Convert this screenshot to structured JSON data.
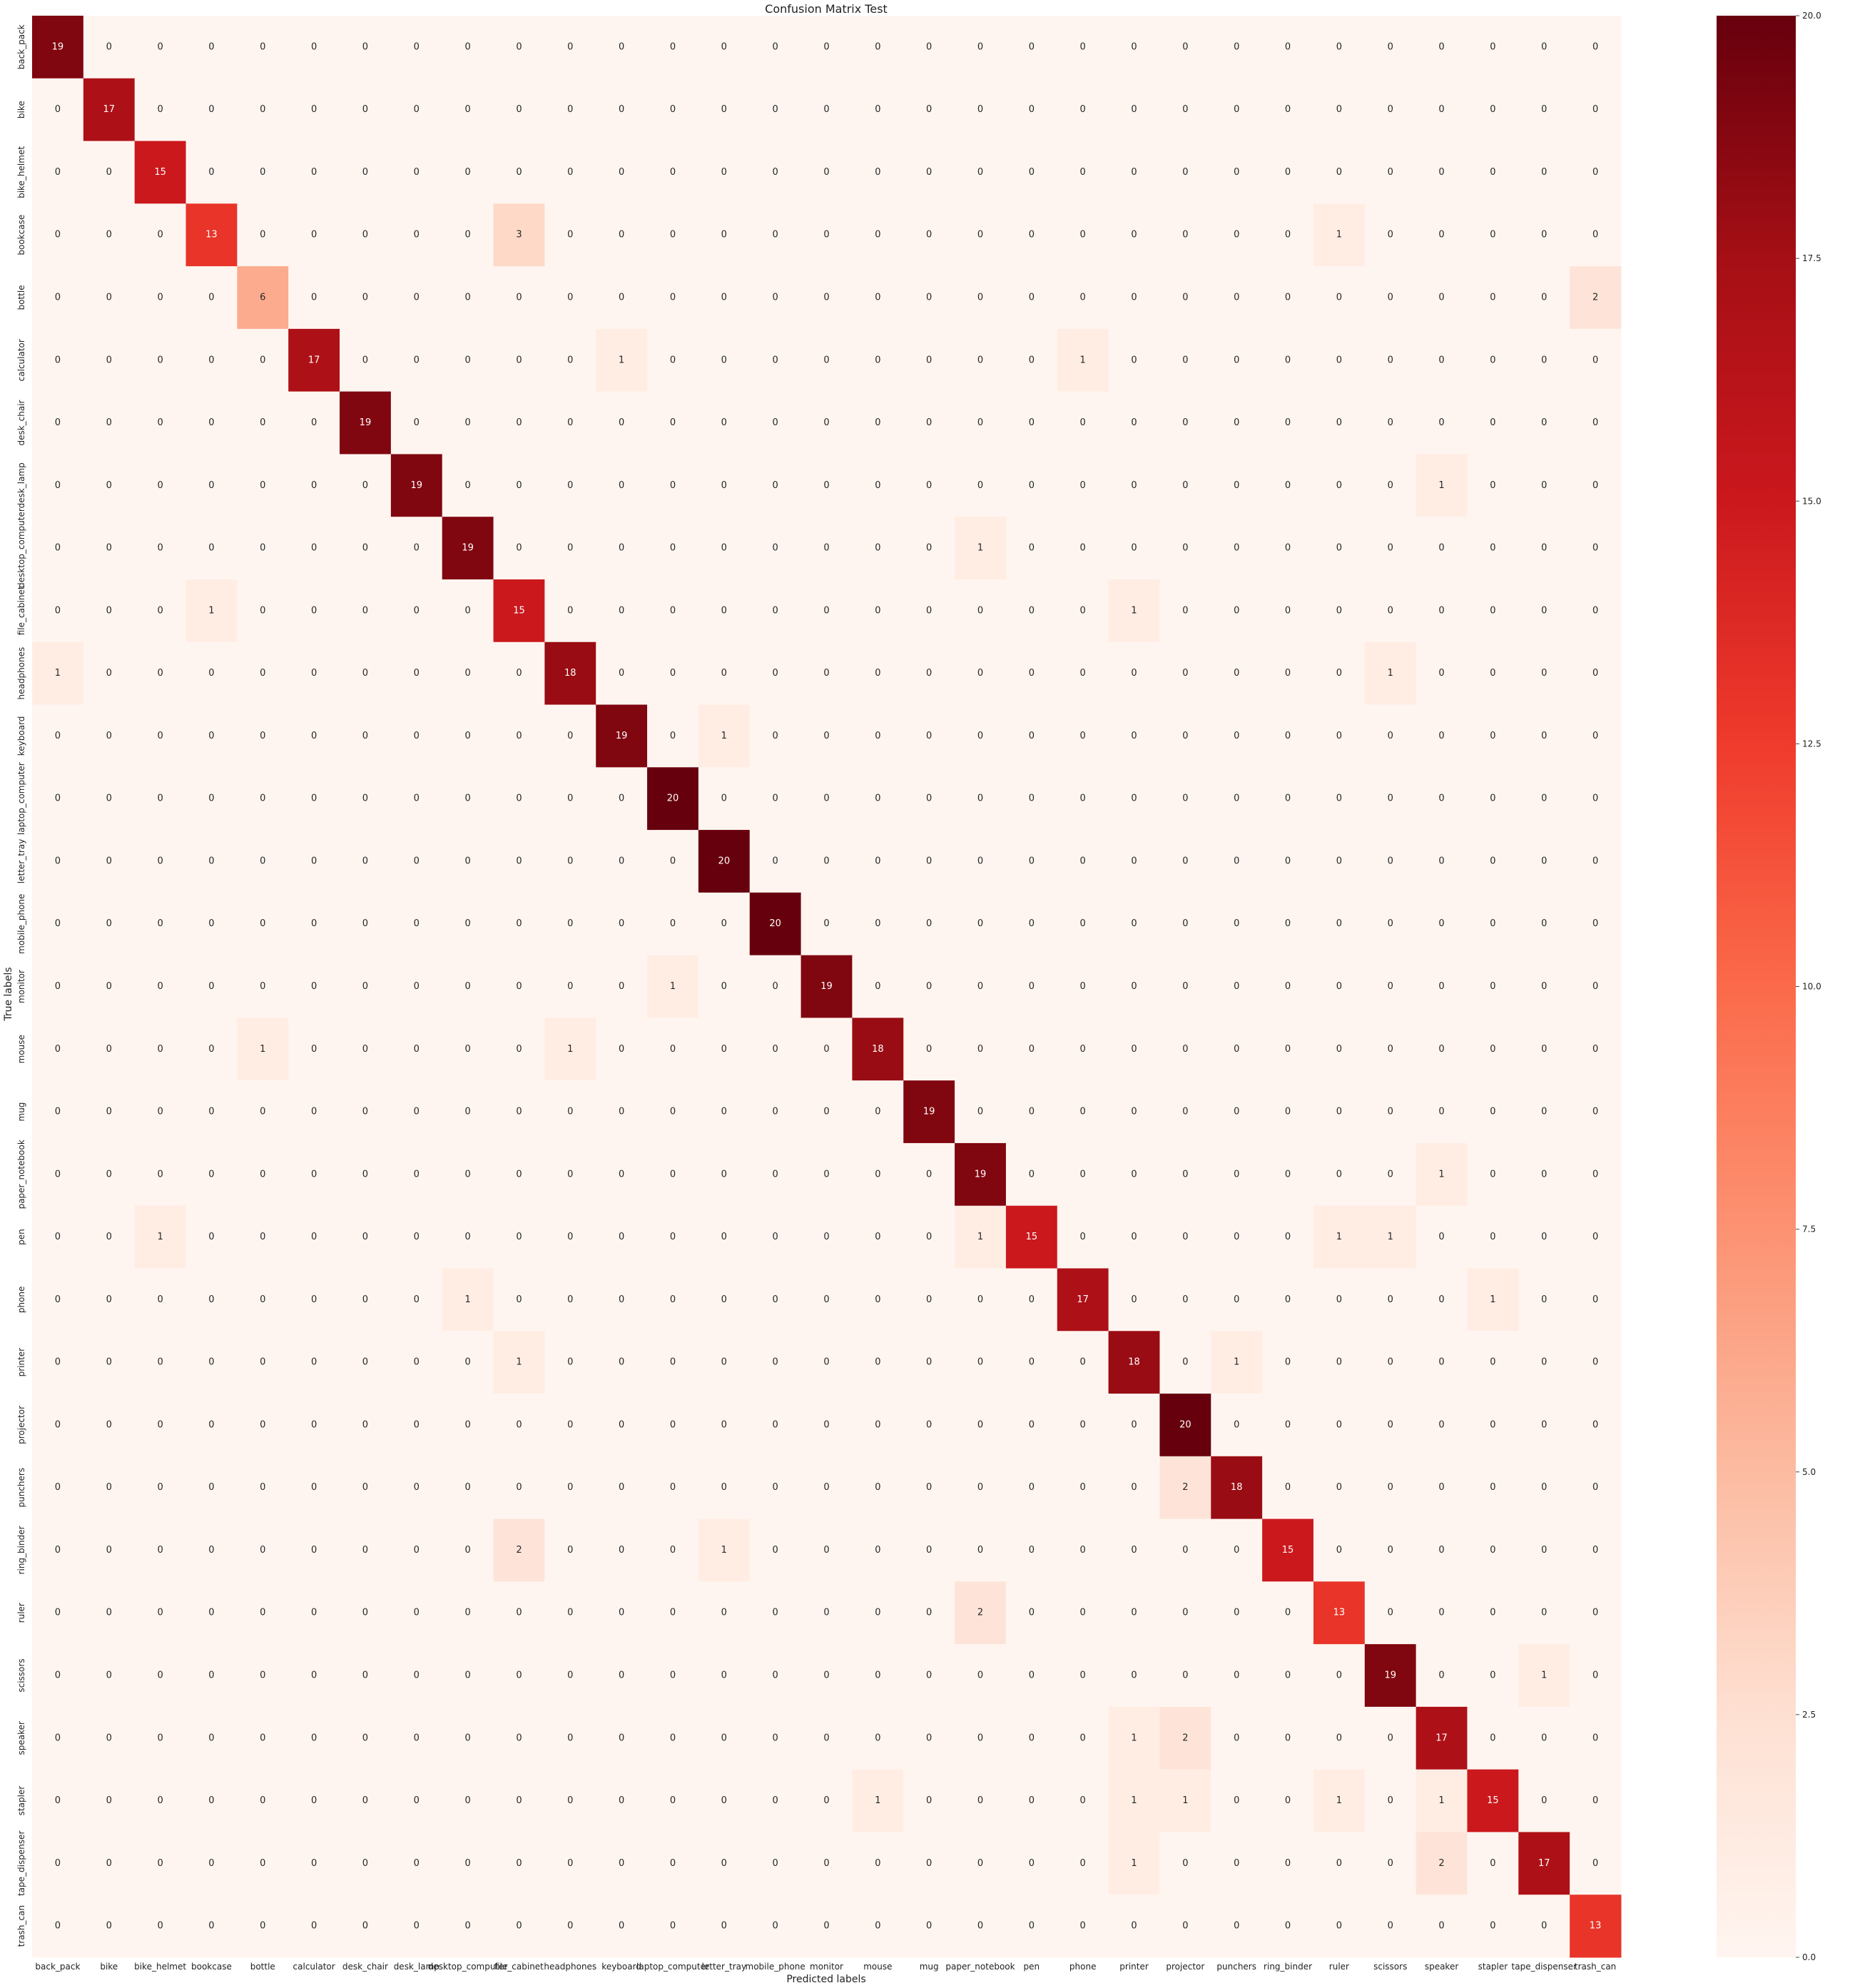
{
  "chart_data": {
    "type": "heatmap",
    "title": "Confusion Matrix Test",
    "xlabel": "Predicted labels",
    "ylabel": "True labels",
    "x_categories": [
      "back_pack",
      "bike",
      "bike_helmet",
      "bookcase",
      "bottle",
      "calculator",
      "desk_chair",
      "desk_lamp",
      "desktop_computer",
      "file_cabinet",
      "headphones",
      "keyboard",
      "laptop_computer",
      "letter_tray",
      "mobile_phone",
      "monitor",
      "mouse",
      "mug",
      "paper_notebook",
      "pen",
      "phone",
      "printer",
      "projector",
      "punchers",
      "ring_binder",
      "ruler",
      "scissors",
      "speaker",
      "stapler",
      "tape_dispenser",
      "trash_can"
    ],
    "y_categories": [
      "back_pack",
      "bike",
      "bike_helmet",
      "bookcase",
      "bottle",
      "calculator",
      "desk_chair",
      "desk_lamp",
      "desktop_computer",
      "file_cabinet",
      "headphones",
      "keyboard",
      "laptop_computer",
      "letter_tray",
      "mobile_phone",
      "monitor",
      "mouse",
      "mug",
      "paper_notebook",
      "pen",
      "phone",
      "printer",
      "projector",
      "punchers",
      "ring_binder",
      "ruler",
      "scissors",
      "speaker",
      "stapler",
      "tape_dispenser",
      "trash_can"
    ],
    "values": [
      [
        19,
        0,
        0,
        0,
        0,
        0,
        0,
        0,
        0,
        0,
        0,
        0,
        0,
        0,
        0,
        0,
        0,
        0,
        0,
        0,
        0,
        0,
        0,
        0,
        0,
        0,
        0,
        0,
        0,
        0,
        0
      ],
      [
        0,
        17,
        0,
        0,
        0,
        0,
        0,
        0,
        0,
        0,
        0,
        0,
        0,
        0,
        0,
        0,
        0,
        0,
        0,
        0,
        0,
        0,
        0,
        0,
        0,
        0,
        0,
        0,
        0,
        0,
        0
      ],
      [
        0,
        0,
        15,
        0,
        0,
        0,
        0,
        0,
        0,
        0,
        0,
        0,
        0,
        0,
        0,
        0,
        0,
        0,
        0,
        0,
        0,
        0,
        0,
        0,
        0,
        0,
        0,
        0,
        0,
        0,
        0
      ],
      [
        0,
        0,
        0,
        13,
        0,
        0,
        0,
        0,
        0,
        3,
        0,
        0,
        0,
        0,
        0,
        0,
        0,
        0,
        0,
        0,
        0,
        0,
        0,
        0,
        0,
        1,
        0,
        0,
        0,
        0,
        0
      ],
      [
        0,
        0,
        0,
        0,
        6,
        0,
        0,
        0,
        0,
        0,
        0,
        0,
        0,
        0,
        0,
        0,
        0,
        0,
        0,
        0,
        0,
        0,
        0,
        0,
        0,
        0,
        0,
        0,
        0,
        0,
        2
      ],
      [
        0,
        0,
        0,
        0,
        0,
        17,
        0,
        0,
        0,
        0,
        0,
        1,
        0,
        0,
        0,
        0,
        0,
        0,
        0,
        0,
        1,
        0,
        0,
        0,
        0,
        0,
        0,
        0,
        0,
        0,
        0
      ],
      [
        0,
        0,
        0,
        0,
        0,
        0,
        19,
        0,
        0,
        0,
        0,
        0,
        0,
        0,
        0,
        0,
        0,
        0,
        0,
        0,
        0,
        0,
        0,
        0,
        0,
        0,
        0,
        0,
        0,
        0,
        0
      ],
      [
        0,
        0,
        0,
        0,
        0,
        0,
        0,
        19,
        0,
        0,
        0,
        0,
        0,
        0,
        0,
        0,
        0,
        0,
        0,
        0,
        0,
        0,
        0,
        0,
        0,
        0,
        0,
        1,
        0,
        0,
        0
      ],
      [
        0,
        0,
        0,
        0,
        0,
        0,
        0,
        0,
        19,
        0,
        0,
        0,
        0,
        0,
        0,
        0,
        0,
        0,
        1,
        0,
        0,
        0,
        0,
        0,
        0,
        0,
        0,
        0,
        0,
        0,
        0
      ],
      [
        0,
        0,
        0,
        1,
        0,
        0,
        0,
        0,
        0,
        15,
        0,
        0,
        0,
        0,
        0,
        0,
        0,
        0,
        0,
        0,
        0,
        1,
        0,
        0,
        0,
        0,
        0,
        0,
        0,
        0,
        0
      ],
      [
        1,
        0,
        0,
        0,
        0,
        0,
        0,
        0,
        0,
        0,
        18,
        0,
        0,
        0,
        0,
        0,
        0,
        0,
        0,
        0,
        0,
        0,
        0,
        0,
        0,
        0,
        1,
        0,
        0,
        0,
        0
      ],
      [
        0,
        0,
        0,
        0,
        0,
        0,
        0,
        0,
        0,
        0,
        0,
        19,
        0,
        1,
        0,
        0,
        0,
        0,
        0,
        0,
        0,
        0,
        0,
        0,
        0,
        0,
        0,
        0,
        0,
        0,
        0
      ],
      [
        0,
        0,
        0,
        0,
        0,
        0,
        0,
        0,
        0,
        0,
        0,
        0,
        20,
        0,
        0,
        0,
        0,
        0,
        0,
        0,
        0,
        0,
        0,
        0,
        0,
        0,
        0,
        0,
        0,
        0,
        0
      ],
      [
        0,
        0,
        0,
        0,
        0,
        0,
        0,
        0,
        0,
        0,
        0,
        0,
        0,
        20,
        0,
        0,
        0,
        0,
        0,
        0,
        0,
        0,
        0,
        0,
        0,
        0,
        0,
        0,
        0,
        0,
        0
      ],
      [
        0,
        0,
        0,
        0,
        0,
        0,
        0,
        0,
        0,
        0,
        0,
        0,
        0,
        0,
        20,
        0,
        0,
        0,
        0,
        0,
        0,
        0,
        0,
        0,
        0,
        0,
        0,
        0,
        0,
        0,
        0
      ],
      [
        0,
        0,
        0,
        0,
        0,
        0,
        0,
        0,
        0,
        0,
        0,
        0,
        1,
        0,
        0,
        19,
        0,
        0,
        0,
        0,
        0,
        0,
        0,
        0,
        0,
        0,
        0,
        0,
        0,
        0,
        0
      ],
      [
        0,
        0,
        0,
        0,
        1,
        0,
        0,
        0,
        0,
        0,
        1,
        0,
        0,
        0,
        0,
        0,
        18,
        0,
        0,
        0,
        0,
        0,
        0,
        0,
        0,
        0,
        0,
        0,
        0,
        0,
        0
      ],
      [
        0,
        0,
        0,
        0,
        0,
        0,
        0,
        0,
        0,
        0,
        0,
        0,
        0,
        0,
        0,
        0,
        0,
        19,
        0,
        0,
        0,
        0,
        0,
        0,
        0,
        0,
        0,
        0,
        0,
        0,
        0
      ],
      [
        0,
        0,
        0,
        0,
        0,
        0,
        0,
        0,
        0,
        0,
        0,
        0,
        0,
        0,
        0,
        0,
        0,
        0,
        19,
        0,
        0,
        0,
        0,
        0,
        0,
        0,
        0,
        1,
        0,
        0,
        0
      ],
      [
        0,
        0,
        1,
        0,
        0,
        0,
        0,
        0,
        0,
        0,
        0,
        0,
        0,
        0,
        0,
        0,
        0,
        0,
        1,
        15,
        0,
        0,
        0,
        0,
        0,
        1,
        1,
        0,
        0,
        0,
        0
      ],
      [
        0,
        0,
        0,
        0,
        0,
        0,
        0,
        0,
        1,
        0,
        0,
        0,
        0,
        0,
        0,
        0,
        0,
        0,
        0,
        0,
        17,
        0,
        0,
        0,
        0,
        0,
        0,
        0,
        1,
        0,
        0
      ],
      [
        0,
        0,
        0,
        0,
        0,
        0,
        0,
        0,
        0,
        1,
        0,
        0,
        0,
        0,
        0,
        0,
        0,
        0,
        0,
        0,
        0,
        18,
        0,
        1,
        0,
        0,
        0,
        0,
        0,
        0,
        0
      ],
      [
        0,
        0,
        0,
        0,
        0,
        0,
        0,
        0,
        0,
        0,
        0,
        0,
        0,
        0,
        0,
        0,
        0,
        0,
        0,
        0,
        0,
        0,
        20,
        0,
        0,
        0,
        0,
        0,
        0,
        0,
        0
      ],
      [
        0,
        0,
        0,
        0,
        0,
        0,
        0,
        0,
        0,
        0,
        0,
        0,
        0,
        0,
        0,
        0,
        0,
        0,
        0,
        0,
        0,
        0,
        2,
        18,
        0,
        0,
        0,
        0,
        0,
        0,
        0
      ],
      [
        0,
        0,
        0,
        0,
        0,
        0,
        0,
        0,
        0,
        2,
        0,
        0,
        0,
        1,
        0,
        0,
        0,
        0,
        0,
        0,
        0,
        0,
        0,
        0,
        15,
        0,
        0,
        0,
        0,
        0,
        0
      ],
      [
        0,
        0,
        0,
        0,
        0,
        0,
        0,
        0,
        0,
        0,
        0,
        0,
        0,
        0,
        0,
        0,
        0,
        0,
        2,
        0,
        0,
        0,
        0,
        0,
        0,
        13,
        0,
        0,
        0,
        0,
        0
      ],
      [
        0,
        0,
        0,
        0,
        0,
        0,
        0,
        0,
        0,
        0,
        0,
        0,
        0,
        0,
        0,
        0,
        0,
        0,
        0,
        0,
        0,
        0,
        0,
        0,
        0,
        0,
        19,
        0,
        0,
        1,
        0
      ],
      [
        0,
        0,
        0,
        0,
        0,
        0,
        0,
        0,
        0,
        0,
        0,
        0,
        0,
        0,
        0,
        0,
        0,
        0,
        0,
        0,
        0,
        1,
        2,
        0,
        0,
        0,
        0,
        17,
        0,
        0,
        0
      ],
      [
        0,
        0,
        0,
        0,
        0,
        0,
        0,
        0,
        0,
        0,
        0,
        0,
        0,
        0,
        0,
        0,
        1,
        0,
        0,
        0,
        0,
        1,
        1,
        0,
        0,
        1,
        0,
        1,
        15,
        0,
        0
      ],
      [
        0,
        0,
        0,
        0,
        0,
        0,
        0,
        0,
        0,
        0,
        0,
        0,
        0,
        0,
        0,
        0,
        0,
        0,
        0,
        0,
        0,
        1,
        0,
        0,
        0,
        0,
        0,
        2,
        0,
        17,
        0
      ],
      [
        0,
        0,
        0,
        0,
        0,
        0,
        0,
        0,
        0,
        0,
        0,
        0,
        0,
        0,
        0,
        0,
        0,
        0,
        0,
        0,
        0,
        0,
        0,
        0,
        0,
        0,
        0,
        0,
        0,
        0,
        13
      ]
    ],
    "colorscale": "Reds",
    "colorbar": {
      "range": [
        0,
        20
      ],
      "ticks": [
        0.0,
        2.5,
        5.0,
        7.5,
        10.0,
        12.5,
        15.0,
        17.5,
        20.0
      ],
      "tick_labels": [
        "0.0",
        "2.5",
        "5.0",
        "7.5",
        "10.0",
        "12.5",
        "15.0",
        "17.5",
        "20.0"
      ]
    },
    "grid": false
  }
}
